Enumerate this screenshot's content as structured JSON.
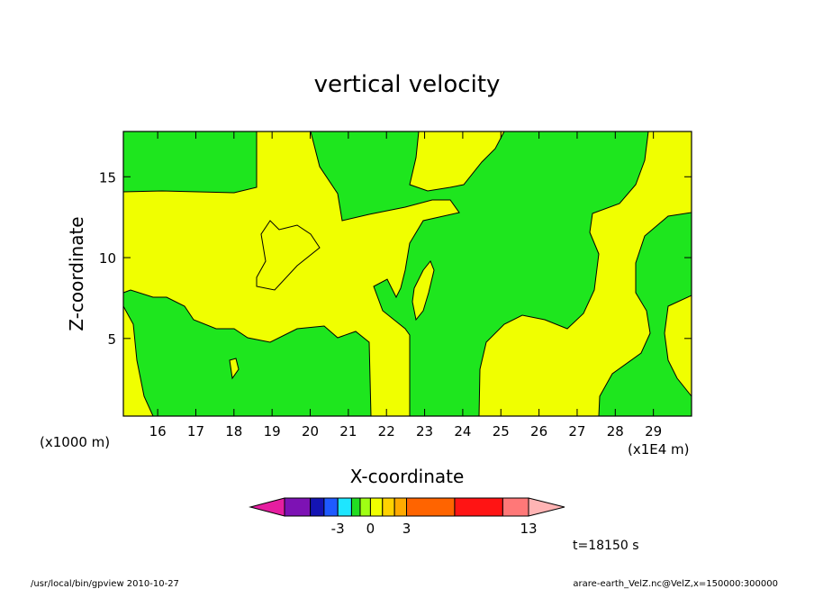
{
  "chart_data": {
    "type": "heatmap",
    "title": "vertical velocity",
    "xlabel": "X-coordinate",
    "ylabel": "Z-coordinate",
    "x_unit": "(x1E4 m)",
    "y_unit": "(x1000 m)",
    "xlim": [
      15.1,
      30.0
    ],
    "ylim": [
      0.2,
      17.8
    ],
    "x_ticks": [
      16,
      17,
      18,
      19,
      20,
      21,
      22,
      23,
      24,
      25,
      26,
      27,
      28,
      29
    ],
    "y_ticks": [
      5,
      10,
      15
    ],
    "colorbar": {
      "levels": [
        -13,
        -5,
        -4,
        -3,
        -2,
        -1,
        0,
        1,
        2,
        3,
        5,
        10,
        13
      ],
      "labels": [
        {
          "value": -3,
          "text": "-3"
        },
        {
          "value": 0,
          "text": "0"
        },
        {
          "value": 3,
          "text": "3"
        },
        {
          "value": 13,
          "text": "13"
        }
      ],
      "colors": [
        "#e61ea0",
        "#7d12b4",
        "#1414b4",
        "#1e5aff",
        "#1ee6ff",
        "#22dd22",
        "#a0ff14",
        "#f0ff00",
        "#ffd200",
        "#ffaa00",
        "#ff6400",
        "#ff1414",
        "#ff7878",
        "#ffb4b4"
      ]
    },
    "regions": {
      "background": "#1ee61e",
      "positive": "#f0ff00"
    }
  },
  "time_label": "t=18150 s",
  "footer_left": "/usr/local/bin/gpview   2010-10-27",
  "footer_right": "arare-earth_VelZ.nc@VelZ,x=150000:300000"
}
